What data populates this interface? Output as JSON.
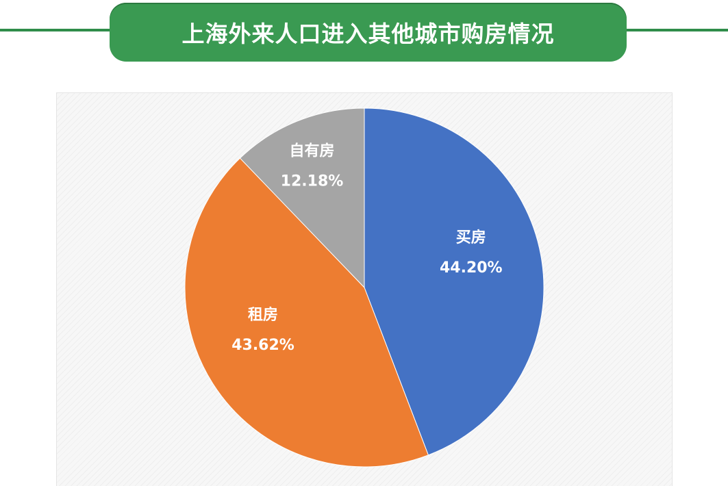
{
  "header": {
    "title": "上海外来人口进入其他城市购房情况"
  },
  "colors": {
    "header_green": "#3a9a52",
    "buy": "#4472c4",
    "rent": "#ed7d31",
    "own": "#a5a5a5"
  },
  "chart_data": {
    "type": "pie",
    "title": "上海外来人口进入其他城市购房情况",
    "slices": [
      {
        "label": "买房",
        "value": 44.2,
        "display": "44.20%",
        "color": "#4472c4"
      },
      {
        "label": "租房",
        "value": 43.62,
        "display": "43.62%",
        "color": "#ed7d31"
      },
      {
        "label": "自有房",
        "value": 12.18,
        "display": "12.18%",
        "color": "#a5a5a5"
      }
    ]
  }
}
